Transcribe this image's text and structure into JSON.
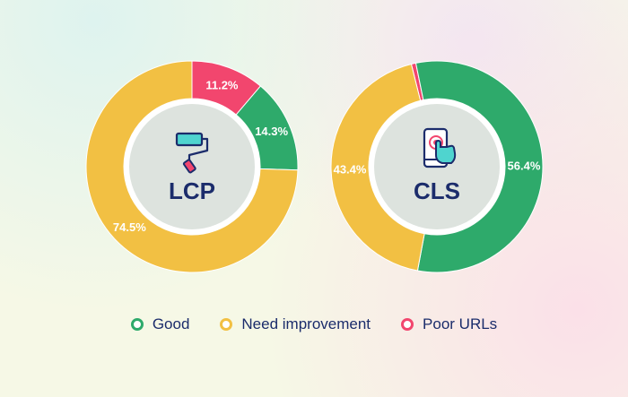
{
  "chart_data": [
    {
      "type": "pie",
      "center_label": "LCP",
      "center_icon": "paint-roller-icon",
      "slices": [
        {
          "label": "Good",
          "value": 14.3,
          "display": "14.3%",
          "color": "#2eaa6b"
        },
        {
          "label": "Need improvement",
          "value": 74.5,
          "display": "74.5%",
          "color": "#f2c043"
        },
        {
          "label": "Poor URLs",
          "value": 11.2,
          "display": "11.2%",
          "color": "#f2466e"
        }
      ]
    },
    {
      "type": "pie",
      "center_label": "CLS",
      "center_icon": "phone-touch-icon",
      "slices": [
        {
          "label": "Good",
          "value": 56.4,
          "display": "56.4%",
          "color": "#2eaa6b"
        },
        {
          "label": "Need improvement",
          "value": 43.4,
          "display": "43.4%",
          "color": "#f2c043"
        },
        {
          "label": "Poor URLs",
          "value": 0.7,
          "display": "",
          "color": "#f2466e"
        }
      ]
    }
  ],
  "legend": [
    {
      "label": "Good",
      "color": "#2eaa6b"
    },
    {
      "label": "Need improvement",
      "color": "#f2c043"
    },
    {
      "label": "Poor URLs",
      "color": "#f2466e"
    }
  ]
}
